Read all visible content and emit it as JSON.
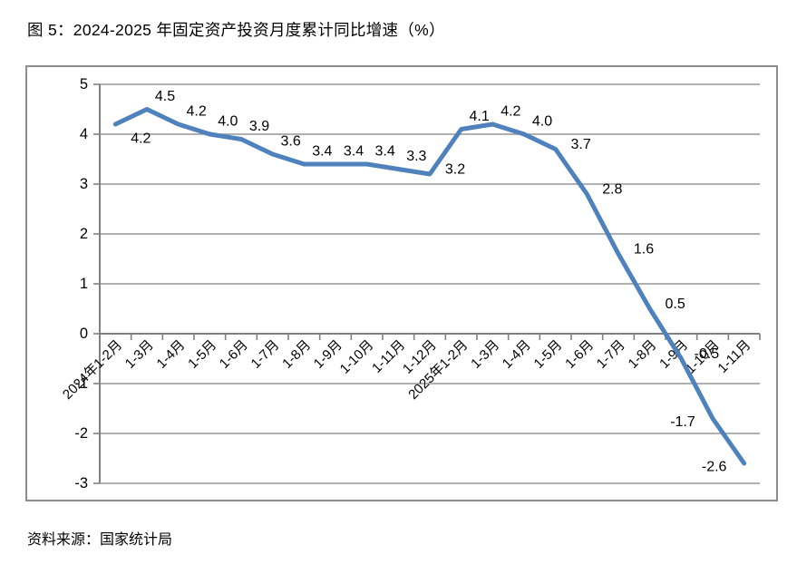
{
  "chart_data": {
    "type": "line",
    "title": "图 5：2024-2025 年固定资产投资月度累计同比增速（%）",
    "source": "资料来源：国家统计局",
    "categories": [
      "2024年1-2月",
      "1-3月",
      "1-4月",
      "1-5月",
      "1-6月",
      "1-7月",
      "1-8月",
      "1-9月",
      "1-10月",
      "1-11月",
      "1-12月",
      "2025年1-2月",
      "1-3月",
      "1-4月",
      "1-5月",
      "1-6月",
      "1-7月",
      "1-8月",
      "1-9月",
      "1-10月",
      "1-11月"
    ],
    "values": [
      4.2,
      4.5,
      4.2,
      4.0,
      3.9,
      3.6,
      3.4,
      3.4,
      3.4,
      3.3,
      3.2,
      4.1,
      4.2,
      4.0,
      3.7,
      2.8,
      1.6,
      0.5,
      -0.5,
      -1.7,
      -2.6
    ],
    "label_placements": [
      "below",
      "above",
      "above",
      "above",
      "above",
      "above",
      "above",
      "above",
      "above",
      "above",
      "right",
      "above",
      "above",
      "above",
      "right",
      "right",
      "right",
      "right",
      "right",
      "left",
      "left"
    ],
    "data_labels": true,
    "value_decimals": 1,
    "ylim": [
      -3,
      5
    ],
    "ytick_step": 1,
    "yticks": [
      "5",
      "4",
      "3",
      "2",
      "1",
      "0",
      "-1",
      "-2",
      "-3"
    ],
    "grid": true,
    "legend": "none",
    "xlabel": "",
    "ylabel": "",
    "x_label_rotation_deg": 45,
    "colors": {
      "line": "#4F81BD",
      "grid": "#969696",
      "axis": "#808080",
      "frame_border": "#8C8C8C",
      "text": "#000000"
    }
  }
}
